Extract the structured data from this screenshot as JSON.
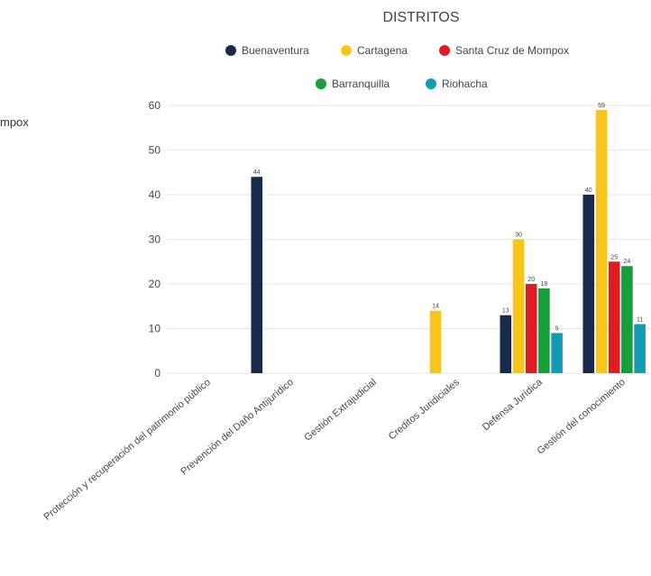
{
  "left_fragment": "mpox",
  "chart_data": {
    "type": "bar",
    "title": "DISTRITOS",
    "categories": [
      "Protección y recuperación del patrimonio público",
      "Prevención del Daño Antijurídico",
      "Gestión Extrajudicial",
      "Creditos Juridiciales",
      "Defensa Jurídica",
      "Gestión del conocimiento"
    ],
    "series": [
      {
        "name": "Buenaventura",
        "color": "#172a4a",
        "values": [
          null,
          44,
          null,
          null,
          13,
          40
        ]
      },
      {
        "name": "Cartagena",
        "color": "#f8c61b",
        "values": [
          null,
          null,
          null,
          14,
          30,
          59
        ]
      },
      {
        "name": "Santa Cruz de Mompox",
        "color": "#e01b24",
        "values": [
          null,
          null,
          null,
          null,
          20,
          25
        ]
      },
      {
        "name": "Barranquilla",
        "color": "#16a03a",
        "values": [
          null,
          null,
          null,
          null,
          19,
          24
        ]
      },
      {
        "name": "Riohacha",
        "color": "#129bb5",
        "values": [
          null,
          null,
          null,
          null,
          9,
          11
        ]
      }
    ],
    "ylim": [
      0,
      60
    ],
    "yticks": [
      "0",
      "10",
      "20",
      "30",
      "40",
      "50",
      "60"
    ],
    "grid": true,
    "legend": "top"
  }
}
